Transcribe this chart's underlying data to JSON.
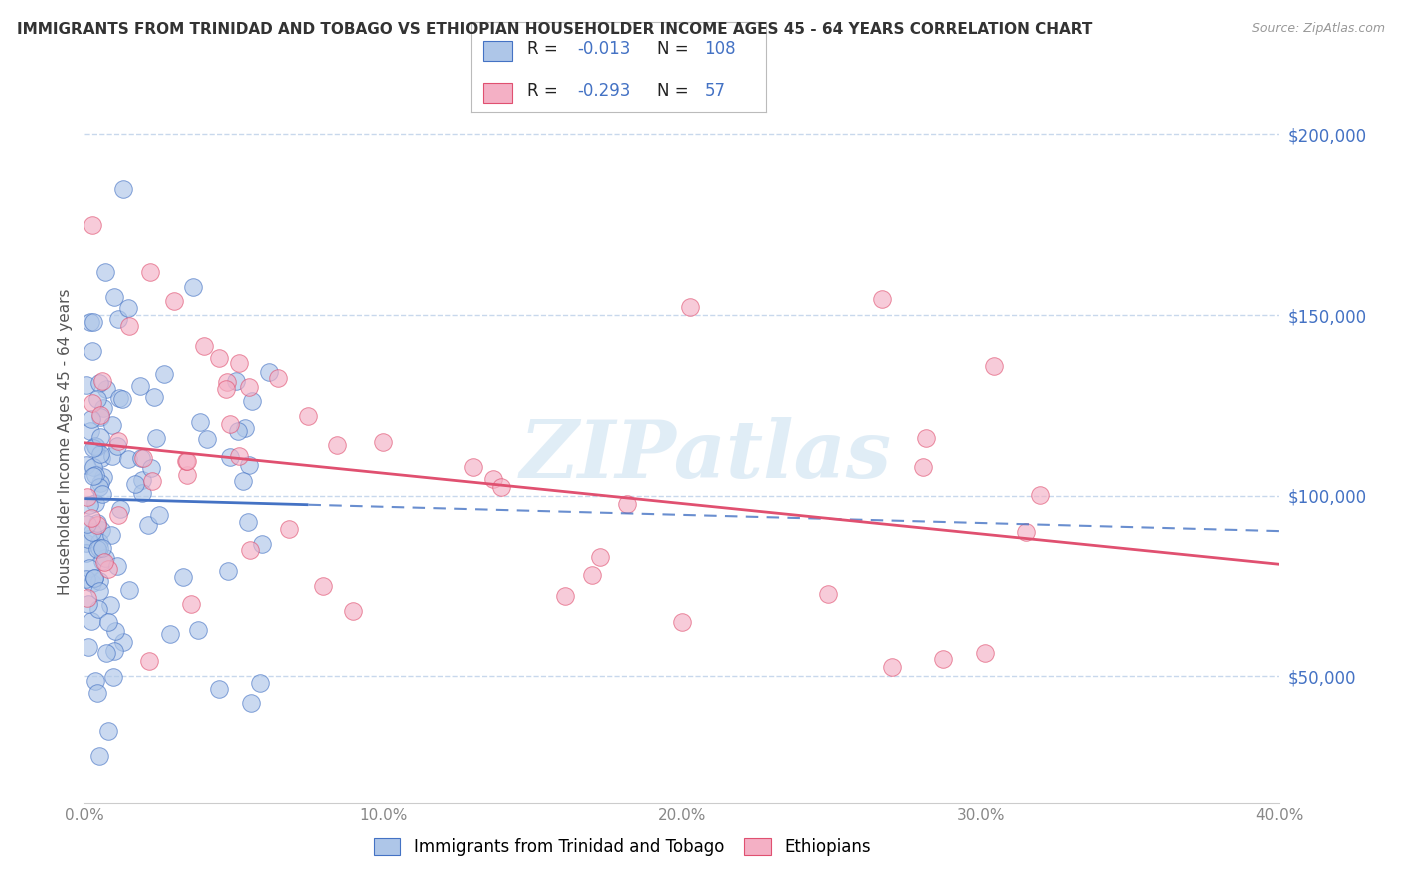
{
  "title": "IMMIGRANTS FROM TRINIDAD AND TOBAGO VS ETHIOPIAN HOUSEHOLDER INCOME AGES 45 - 64 YEARS CORRELATION CHART",
  "source": "Source: ZipAtlas.com",
  "ylabel": "Householder Income Ages 45 - 64 years",
  "xmin": 0.0,
  "xmax": 40.0,
  "ymin": 15000,
  "ymax": 215000,
  "yticks": [
    50000,
    100000,
    150000,
    200000
  ],
  "ytick_labels": [
    "$50,000",
    "$100,000",
    "$150,000",
    "$200,000"
  ],
  "xticks": [
    0,
    10,
    20,
    30,
    40
  ],
  "xtick_labels": [
    "0.0%",
    "10.0%",
    "20.0%",
    "30.0%",
    "40.0%"
  ],
  "legend_R1": "-0.013",
  "legend_N1": "108",
  "legend_R2": "-0.293",
  "legend_N2": "57",
  "legend_label1": "Immigrants from Trinidad and Tobago",
  "legend_label2": "Ethiopians",
  "blue_fill": "#aec6e8",
  "blue_edge": "#4472c4",
  "pink_fill": "#f4b0c5",
  "pink_edge": "#e05070",
  "blue_line_color": "#4472c4",
  "pink_line_color": "#e05070",
  "watermark": "ZIPatlas",
  "background_color": "#ffffff",
  "grid_color": "#c8d8ec",
  "text_color": "#333333",
  "axis_color": "#888888"
}
